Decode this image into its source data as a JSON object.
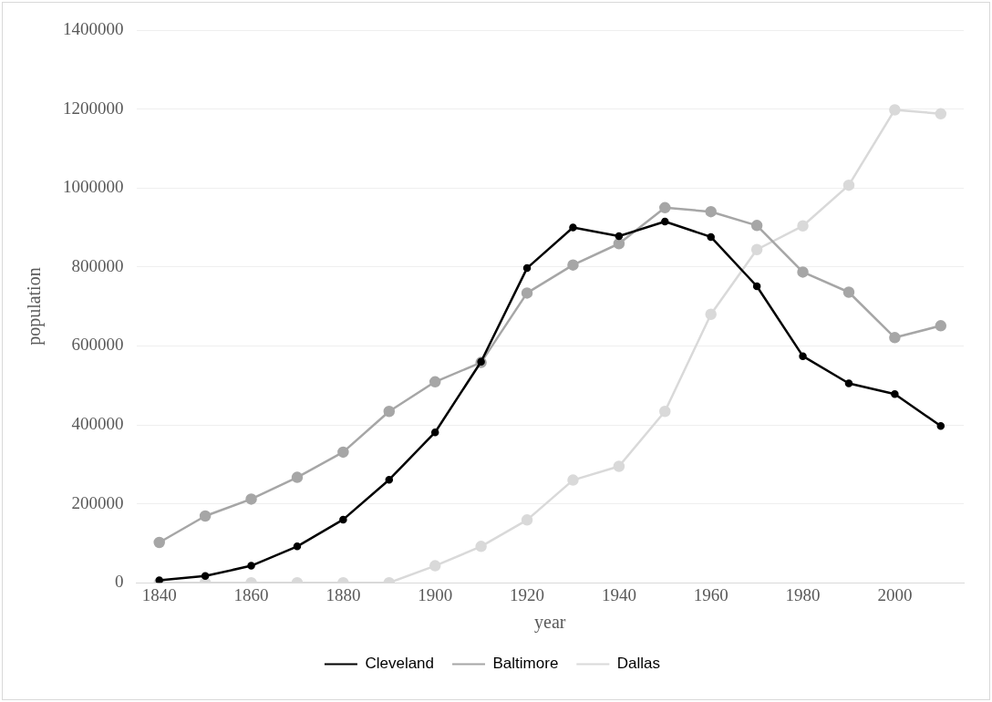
{
  "chart_data": {
    "type": "line",
    "xlabel": "year",
    "ylabel": "population",
    "x": [
      1840,
      1850,
      1860,
      1870,
      1880,
      1890,
      1900,
      1910,
      1920,
      1930,
      1940,
      1950,
      1960,
      1970,
      1980,
      1990,
      2000,
      2010
    ],
    "series": [
      {
        "name": "Cleveland",
        "color": "#000000",
        "values": [
          6000,
          17000,
          43000,
          92000,
          160000,
          261000,
          381000,
          560000,
          797000,
          900000,
          878000,
          915000,
          876000,
          751000,
          574000,
          505000,
          478000,
          397000
        ]
      },
      {
        "name": "Baltimore",
        "color": "#a6a6a6",
        "values": [
          102000,
          169000,
          212000,
          267000,
          331000,
          434000,
          509000,
          558000,
          734000,
          805000,
          859000,
          950000,
          940000,
          905000,
          787000,
          736000,
          621000,
          651000
        ]
      },
      {
        "name": "Dallas",
        "color": "#d9d9d9",
        "values": [
          0,
          0,
          0,
          0,
          0,
          0,
          43000,
          92000,
          159000,
          260000,
          295000,
          434000,
          680000,
          844000,
          904000,
          1007000,
          1198000,
          1188000
        ]
      }
    ],
    "xlim": [
      1835,
      2015
    ],
    "xticks": [
      1840,
      1860,
      1880,
      1900,
      1920,
      1940,
      1960,
      1980,
      2000
    ],
    "ylim": [
      0,
      1400000
    ],
    "yticks": [
      0,
      200000,
      400000,
      600000,
      800000,
      1000000,
      1200000,
      1400000
    ],
    "grid": "y",
    "legend": "bottom",
    "marker": "circle",
    "line_style": "solid"
  }
}
